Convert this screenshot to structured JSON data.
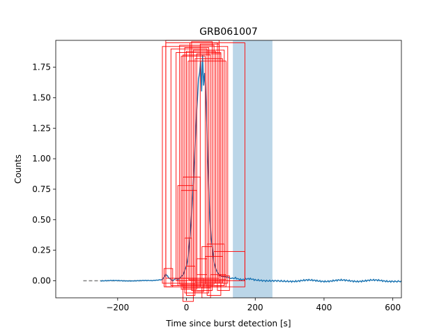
{
  "chart_data": {
    "type": "line",
    "title": "GRB061007",
    "xlabel": "Time since burst detection [s]",
    "ylabel": "Counts",
    "xlim": [
      -380,
      625
    ],
    "ylim": [
      -0.14,
      1.97
    ],
    "xticks": [
      -200,
      0,
      200,
      400,
      600
    ],
    "xtick_labels": [
      "−200",
      "0",
      "200",
      "400",
      "600"
    ],
    "yticks": [
      0.0,
      0.25,
      0.5,
      0.75,
      1.0,
      1.25,
      1.5,
      1.75
    ],
    "ytick_labels": [
      "0.00",
      "0.25",
      "0.50",
      "0.75",
      "1.00",
      "1.25",
      "1.50",
      "1.75"
    ],
    "grid": false,
    "legend": "none",
    "colors": {
      "lightcurve": "#1f77b4",
      "background_fit": "#808080",
      "shaded_interval": "#1f77b4",
      "boxes": "#ff0000"
    },
    "shaded_interval": {
      "x": [
        135,
        250
      ],
      "opacity": 0.3
    },
    "background_fit": {
      "style": "dashed",
      "x": [
        -300,
        -130
      ],
      "y": [
        0.0,
        0.0
      ]
    },
    "lightcurve": {
      "x": [
        -250,
        -200,
        -150,
        -100,
        -70,
        -60,
        -55,
        -50,
        -45,
        -40,
        -35,
        -30,
        -25,
        -20,
        -10,
        0,
        5,
        10,
        15,
        20,
        25,
        30,
        35,
        38,
        41,
        44,
        47,
        50,
        53,
        56,
        59,
        62,
        65,
        68,
        72,
        76,
        80,
        85,
        90,
        95,
        100,
        110,
        120,
        130,
        140,
        160,
        180,
        200,
        230,
        260,
        300,
        350,
        400,
        450,
        500,
        550,
        600,
        625
      ],
      "y": [
        0.0,
        0.0,
        0.0,
        0.0,
        0.01,
        0.05,
        0.04,
        0.02,
        0.01,
        0.0,
        0.01,
        0.02,
        0.01,
        0.02,
        0.05,
        0.12,
        0.2,
        0.35,
        0.55,
        0.8,
        1.1,
        1.4,
        1.65,
        1.7,
        1.8,
        1.55,
        1.85,
        1.6,
        1.7,
        1.55,
        1.3,
        1.0,
        0.75,
        0.5,
        0.35,
        0.25,
        0.15,
        0.1,
        0.07,
        0.05,
        0.04,
        0.03,
        0.03,
        0.02,
        0.02,
        0.015,
        0.01,
        0.01,
        0.005,
        0.005,
        0.0,
        0.0,
        0.0,
        0.0,
        0.0,
        0.0,
        0.0,
        0.0
      ]
    },
    "boxes": [
      {
        "x0": -60,
        "x1": 95,
        "y0": 0.02,
        "y1": 1.97
      },
      {
        "x0": -70,
        "x1": 120,
        "y0": -0.02,
        "y1": 1.92
      },
      {
        "x0": -60,
        "x1": 170,
        "y0": -0.05,
        "y1": 1.95
      },
      {
        "x0": -45,
        "x1": 60,
        "y0": -0.04,
        "y1": 1.9
      },
      {
        "x0": -30,
        "x1": 100,
        "y0": 0.0,
        "y1": 1.87
      },
      {
        "x0": -20,
        "x1": 80,
        "y0": -0.03,
        "y1": 1.93
      },
      {
        "x0": -10,
        "x1": 70,
        "y0": -0.06,
        "y1": 1.85
      },
      {
        "x0": 0,
        "x1": 85,
        "y0": -0.02,
        "y1": 1.88
      },
      {
        "x0": 10,
        "x1": 90,
        "y0": 0.0,
        "y1": 1.95
      },
      {
        "x0": 20,
        "x1": 110,
        "y0": -0.04,
        "y1": 1.89
      },
      {
        "x0": 15,
        "x1": 75,
        "y0": -0.08,
        "y1": 1.96
      },
      {
        "x0": 25,
        "x1": 105,
        "y0": -0.01,
        "y1": 1.82
      },
      {
        "x0": -5,
        "x1": 65,
        "y0": -0.1,
        "y1": 1.91
      },
      {
        "x0": 30,
        "x1": 100,
        "y0": -0.05,
        "y1": 1.86
      },
      {
        "x0": 5,
        "x1": 115,
        "y0": 0.01,
        "y1": 1.8
      },
      {
        "x0": -15,
        "x1": 55,
        "y0": -0.03,
        "y1": 1.84
      },
      {
        "x0": 40,
        "x1": 95,
        "y0": -0.02,
        "y1": 1.94
      },
      {
        "x0": -65,
        "x1": -40,
        "y0": -0.05,
        "y1": 0.1
      },
      {
        "x0": -25,
        "x1": 20,
        "y0": -0.04,
        "y1": 0.78
      },
      {
        "x0": -15,
        "x1": 30,
        "y0": -0.07,
        "y1": 0.74
      },
      {
        "x0": -10,
        "x1": 40,
        "y0": -0.05,
        "y1": 0.85
      },
      {
        "x0": -5,
        "x1": 15,
        "y0": -0.02,
        "y1": 0.35
      },
      {
        "x0": 0,
        "x1": 25,
        "y0": -0.12,
        "y1": 0.12
      },
      {
        "x0": -10,
        "x1": 20,
        "y0": -0.17,
        "y1": 0.02
      },
      {
        "x0": 45,
        "x1": 75,
        "y0": -0.02,
        "y1": 0.28
      },
      {
        "x0": 60,
        "x1": 110,
        "y0": -0.04,
        "y1": 0.3
      },
      {
        "x0": 80,
        "x1": 170,
        "y0": 0.0,
        "y1": 0.24
      },
      {
        "x0": 55,
        "x1": 105,
        "y0": -0.02,
        "y1": 0.2
      },
      {
        "x0": 70,
        "x1": 115,
        "y0": -0.05,
        "y1": 0.05
      },
      {
        "x0": 60,
        "x1": 100,
        "y0": -0.12,
        "y1": -0.02
      },
      {
        "x0": 45,
        "x1": 70,
        "y0": -0.14,
        "y1": -0.05
      },
      {
        "x0": 20,
        "x1": 50,
        "y0": -0.09,
        "y1": 0.02
      },
      {
        "x0": 90,
        "x1": 125,
        "y0": -0.08,
        "y1": 0.04
      },
      {
        "x0": 30,
        "x1": 60,
        "y0": 0.05,
        "y1": 0.18
      }
    ]
  }
}
